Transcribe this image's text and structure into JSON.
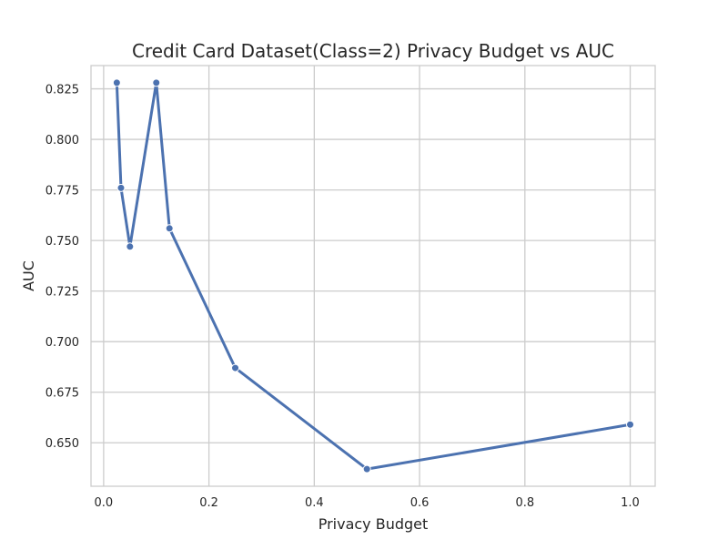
{
  "chart_data": {
    "type": "line",
    "title": "Credit Card Dataset(Class=2) Privacy Budget vs AUC",
    "xlabel": "Privacy Budget",
    "ylabel": "AUC",
    "xlim": [
      -0.024,
      1.0475
    ],
    "ylim": [
      0.6285,
      0.8365
    ],
    "grid": true,
    "x_ticks": [
      0.0,
      0.2,
      0.4,
      0.6,
      0.8,
      1.0
    ],
    "x_tick_labels": [
      "0.0",
      "0.2",
      "0.4",
      "0.6",
      "0.8",
      "1.0"
    ],
    "y_ticks": [
      0.65,
      0.675,
      0.7,
      0.725,
      0.75,
      0.775,
      0.8,
      0.825
    ],
    "y_tick_labels": [
      "0.650",
      "0.675",
      "0.700",
      "0.725",
      "0.750",
      "0.775",
      "0.800",
      "0.825"
    ],
    "series": [
      {
        "color": "#4c72b0",
        "marker": "circle",
        "x": [
          0.025,
          0.033,
          0.05,
          0.1,
          0.125,
          0.25,
          0.5,
          1.0
        ],
        "y": [
          0.828,
          0.776,
          0.747,
          0.828,
          0.756,
          0.687,
          0.637,
          0.659
        ]
      }
    ]
  }
}
